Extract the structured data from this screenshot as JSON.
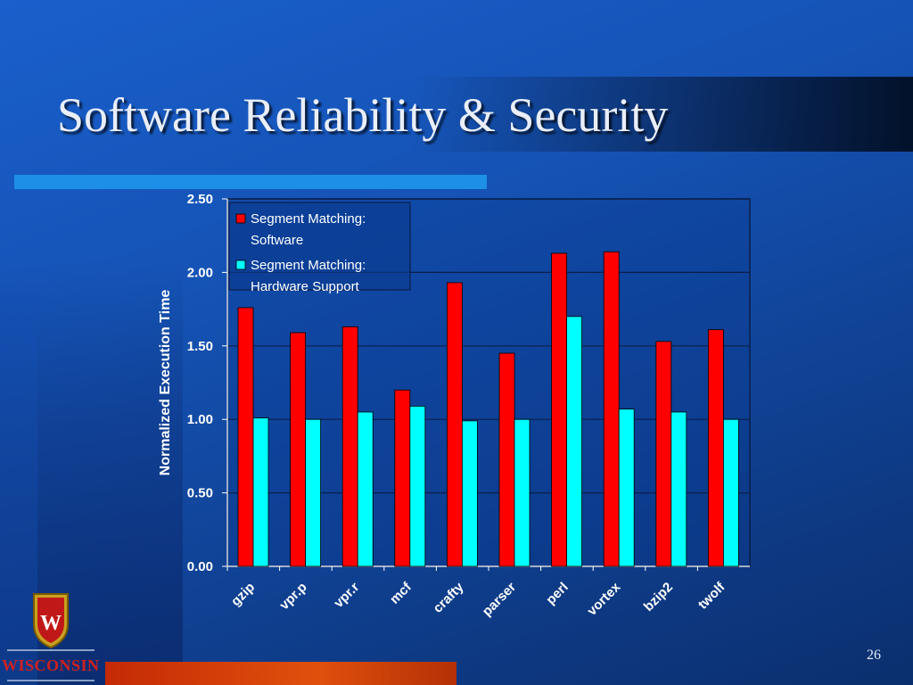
{
  "slide": {
    "title": "Software Reliability & Security",
    "page_number": "26",
    "logo_text": "WISCONSIN"
  },
  "colors": {
    "series_software": "#ff0000",
    "series_hardware": "#00ffff",
    "accent_underline": "#1d8fe6",
    "bottom_bar": "#d8420a"
  },
  "chart_data": {
    "type": "bar",
    "title": "",
    "xlabel": "",
    "ylabel": "Normalized Execution Time",
    "ylim": [
      0,
      2.5
    ],
    "yticks": [
      "0.00",
      "0.50",
      "1.00",
      "1.50",
      "2.00",
      "2.50"
    ],
    "grid": true,
    "legend_position": "top-left",
    "categories": [
      "gzip",
      "vpr.p",
      "vpr.r",
      "mcf",
      "crafty",
      "parser",
      "perl",
      "vortex",
      "bzip2",
      "twolf"
    ],
    "series": [
      {
        "name": "Segment Matching: Software",
        "legend_lines": [
          "Segment Matching:",
          "Software"
        ],
        "values": [
          1.76,
          1.59,
          1.63,
          1.2,
          1.93,
          1.45,
          2.13,
          2.14,
          1.53,
          1.61
        ]
      },
      {
        "name": "Segment Matching: Hardware Support",
        "legend_lines": [
          "Segment Matching:",
          "Hardware Support"
        ],
        "values": [
          1.01,
          1.0,
          1.05,
          1.09,
          0.99,
          1.0,
          1.7,
          1.07,
          1.05,
          1.0
        ]
      }
    ]
  }
}
